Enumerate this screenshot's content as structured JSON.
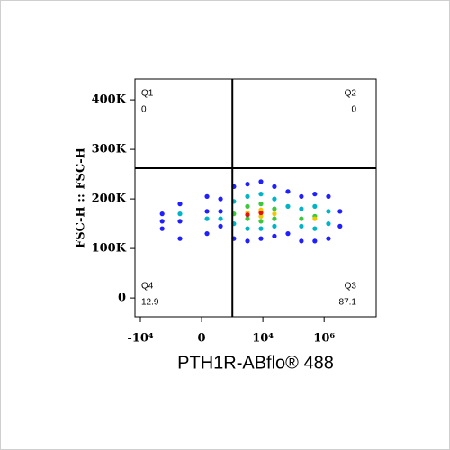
{
  "chart_data": {
    "type": "flow-density",
    "x_label": "PTH1R-ABflo® 488",
    "y_label": "FSC-H :: FSC-H",
    "xscale": "arcsinh",
    "xlim": [
      -15000,
      50000000
    ],
    "xticks": [
      {
        "value": -10000,
        "label": "-10⁴"
      },
      0,
      {
        "value": 10000,
        "label": "10⁴"
      },
      {
        "value": 1000000,
        "label": "10⁶"
      }
    ],
    "ylim": [
      -38000,
      442000
    ],
    "yticks": [
      0,
      {
        "value": 100000,
        "label": "100K"
      },
      {
        "value": 200000,
        "label": "200K"
      },
      {
        "value": 300000,
        "label": "300K"
      },
      {
        "value": 400000,
        "label": "400K"
      }
    ],
    "gate": {
      "x": 1000,
      "y": 262000
    },
    "quadrants": [
      {
        "name": "Q1",
        "value": 0,
        "corner": "top-left"
      },
      {
        "name": "Q2",
        "value": 0,
        "corner": "top-right"
      },
      {
        "name": "Q3",
        "value": 87.1,
        "corner": "bottom-right"
      },
      {
        "name": "Q4",
        "value": 12.9,
        "corner": "bottom-left"
      }
    ],
    "density_levels": [
      {
        "color": "#1f1fff",
        "x": [
          -1940,
          -1940,
          -490,
          -490,
          -490,
          83,
          83,
          83,
          390,
          390,
          1120,
          1120,
          3140,
          3140,
          8640,
          8640,
          23800,
          23800,
          65800,
          65800,
          181000,
          181000,
          497000,
          497000,
          1380000,
          1380000,
          3300000,
          3300000,
          -1940,
          390
        ],
        "y": [
          170000,
          140000,
          190000,
          155000,
          120000,
          205000,
          130000,
          175000,
          145000,
          200000,
          225000,
          120000,
          230000,
          115000,
          235000,
          120000,
          225000,
          125000,
          215000,
          130000,
          205000,
          115000,
          210000,
          115000,
          205000,
          120000,
          175000,
          145000,
          155000,
          175000
        ]
      },
      {
        "color": "#00b4c8",
        "x": [
          390,
          1120,
          1120,
          3140,
          3140,
          8640,
          8640,
          23800,
          23800,
          65800,
          181000,
          181000,
          497000,
          497000,
          1380000,
          1380000,
          83,
          -490
        ],
        "y": [
          160000,
          195000,
          150000,
          205000,
          140000,
          210000,
          140000,
          200000,
          145000,
          185000,
          180000,
          145000,
          185000,
          140000,
          175000,
          150000,
          160000,
          170000
        ]
      },
      {
        "color": "#3cc83c",
        "x": [
          1120,
          3140,
          3140,
          8640,
          8640,
          23800,
          23800,
          497000,
          181000
        ],
        "y": [
          170000,
          185000,
          160000,
          190000,
          155000,
          180000,
          160000,
          165000,
          160000
        ]
      },
      {
        "color": "#f0c800",
        "x": [
          3140,
          8640,
          8640,
          23800,
          497000
        ],
        "y": [
          172000,
          178000,
          165000,
          170000,
          160000
        ]
      },
      {
        "color": "#e81010",
        "x": [
          8640,
          3140
        ],
        "y": [
          172000,
          168000
        ]
      }
    ]
  }
}
